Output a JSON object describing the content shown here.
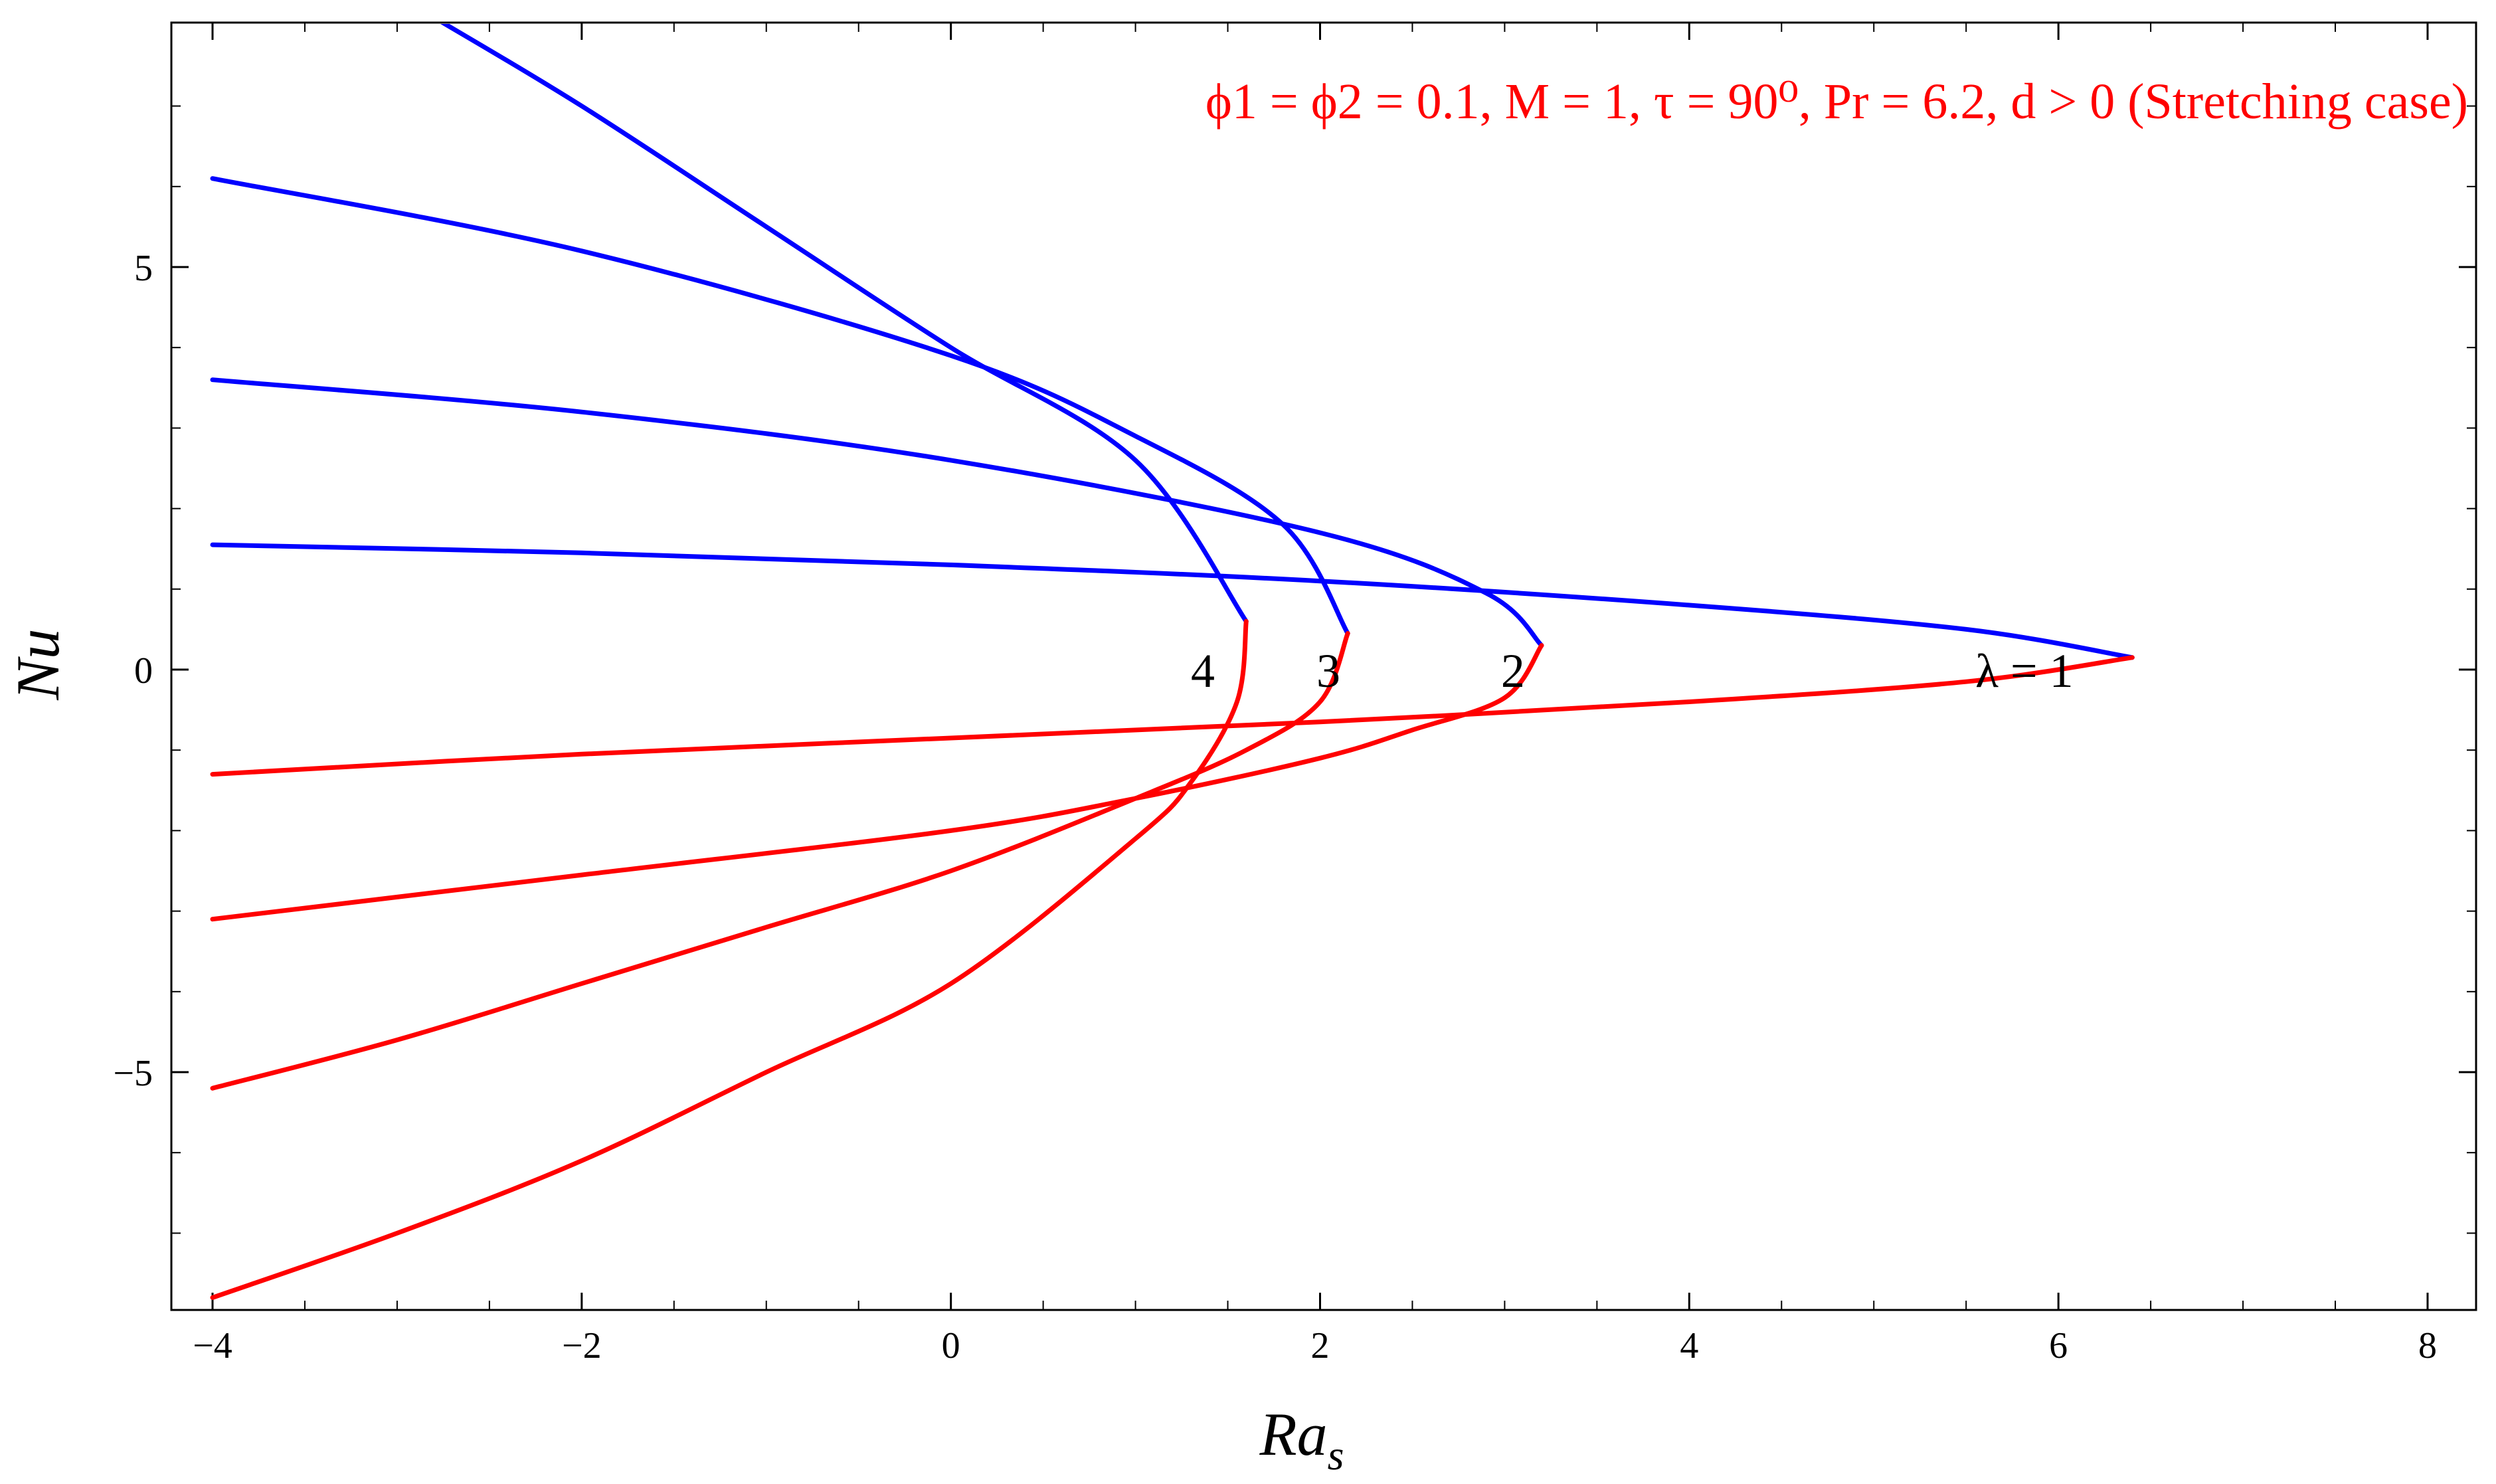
{
  "chart_data": {
    "type": "line",
    "title": "",
    "xlabel": "Ra",
    "xlabel_sub": "s",
    "ylabel": "Nu",
    "xlim": [
      -4,
      8
    ],
    "ylim": [
      -8,
      8
    ],
    "x_ticks": [
      -4,
      -2,
      0,
      2,
      4,
      6,
      8
    ],
    "x_tick_labels": [
      "−4",
      "−2",
      "0",
      "2",
      "4",
      "6",
      "8"
    ],
    "y_ticks": [
      -5,
      0,
      5
    ],
    "y_tick_labels": [
      "−5",
      "0",
      "5"
    ],
    "grid": false,
    "annotation": {
      "text": "ϕ1 = ϕ2 = 0.1, M = 1, τ = 90⁰, Pr = 6.2, d > 0 (Stretching case)",
      "color": "#ff0000"
    },
    "colors": {
      "upper_branch": "#0000ff",
      "lower_branch": "#ff0000"
    },
    "series": [
      {
        "label": "λ = 1",
        "turning_point": [
          6.4,
          0.15
        ],
        "upper": {
          "x": [
            -4,
            -2,
            0,
            2,
            4,
            5.5,
            6.4
          ],
          "y": [
            1.55,
            1.45,
            1.3,
            1.1,
            0.8,
            0.5,
            0.15
          ]
        },
        "lower": {
          "x": [
            6.4,
            5.5,
            4,
            2,
            0,
            -2,
            -4
          ],
          "y": [
            0.15,
            -0.15,
            -0.4,
            -0.65,
            -0.85,
            -1.05,
            -1.3
          ]
        }
      },
      {
        "label": "2",
        "turning_point": [
          3.2,
          0.3
        ],
        "upper": {
          "x": [
            -4,
            -2,
            0,
            2,
            2.9,
            3.2
          ],
          "y": [
            3.6,
            3.2,
            2.6,
            1.7,
            0.95,
            0.3
          ]
        },
        "lower": {
          "x": [
            3.2,
            3.0,
            2.5,
            2.0,
            1.0,
            0,
            -2,
            -4
          ],
          "y": [
            0.3,
            -0.35,
            -0.75,
            -1.1,
            -1.6,
            -2.0,
            -2.55,
            -3.1
          ]
        }
      },
      {
        "label": "3",
        "turning_point": [
          2.15,
          0.45
        ],
        "upper": {
          "x": [
            -4,
            -2,
            0,
            1.0,
            1.8,
            2.15
          ],
          "y": [
            6.1,
            5.2,
            3.9,
            2.9,
            1.8,
            0.45
          ]
        },
        "lower": {
          "x": [
            2.15,
            2.0,
            1.6,
            1.0,
            0,
            -1,
            -2,
            -3,
            -4
          ],
          "y": [
            0.45,
            -0.4,
            -1.0,
            -1.6,
            -2.5,
            -3.2,
            -3.9,
            -4.6,
            -5.2
          ]
        }
      },
      {
        "label": "4",
        "turning_point": [
          1.6,
          0.6
        ],
        "upper": {
          "x": [
            -2.8,
            -2,
            -1,
            0,
            1.0,
            1.6
          ],
          "y": [
            8.1,
            7.0,
            5.5,
            4.0,
            2.6,
            0.6
          ]
        },
        "lower": {
          "x": [
            1.6,
            1.55,
            1.3,
            1.0,
            0,
            -1,
            -2,
            -3,
            -4
          ],
          "y": [
            0.6,
            -0.4,
            -1.4,
            -2.1,
            -3.9,
            -5.0,
            -6.1,
            -7.0,
            -7.8
          ]
        }
      }
    ],
    "curve_labels": [
      {
        "text": "4",
        "x": 1.3,
        "y": 0.0
      },
      {
        "text": "3",
        "x": 1.98,
        "y": 0.0
      },
      {
        "text": "2",
        "x": 2.98,
        "y": 0.0
      },
      {
        "text": "λ = 1",
        "x": 5.55,
        "y": 0.0
      }
    ]
  }
}
